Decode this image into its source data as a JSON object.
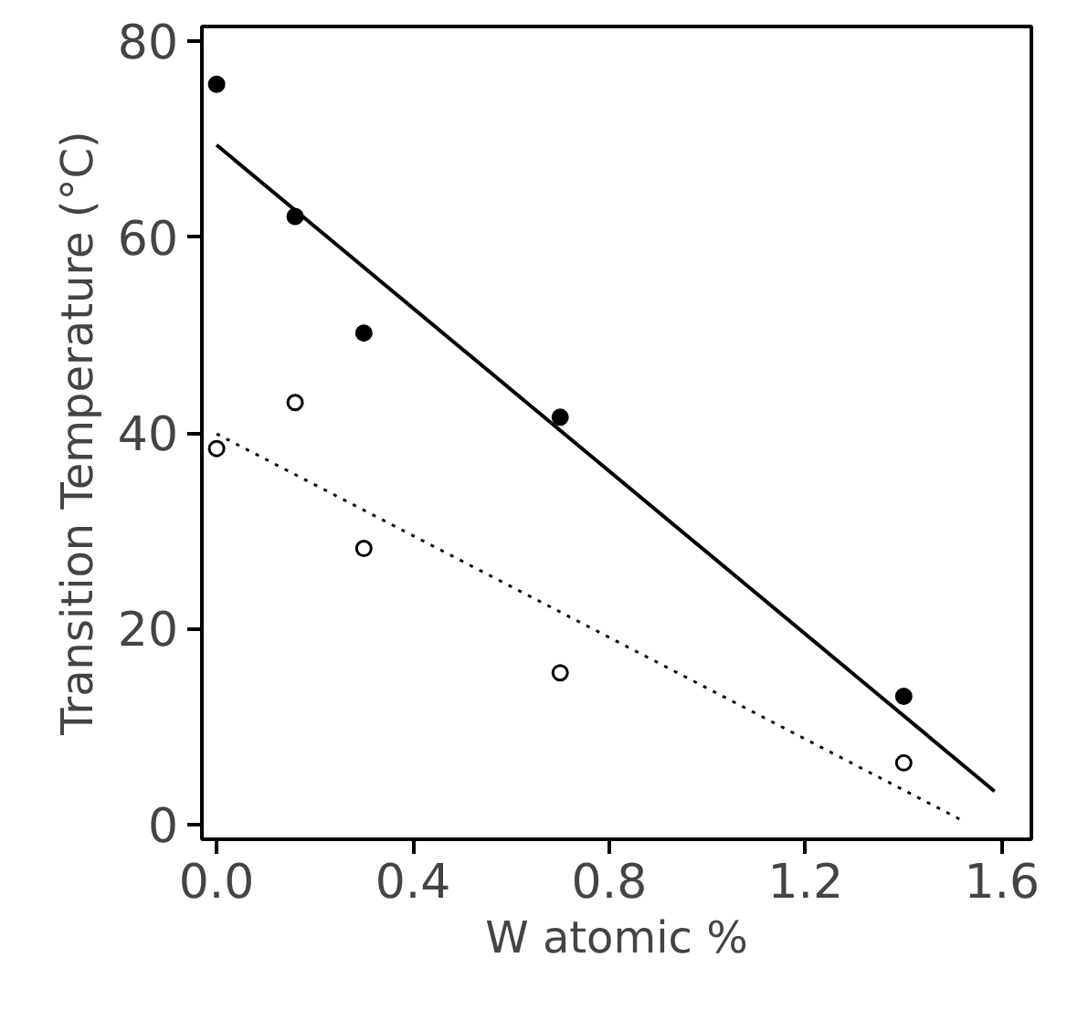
{
  "chart_data": {
    "type": "scatter",
    "xlabel": "W atomic %",
    "ylabel": "Transition Temperature (°C)",
    "xlim": [
      -0.03,
      1.66
    ],
    "ylim": [
      -1.5,
      81.5
    ],
    "xticks": [
      {
        "value": 0,
        "label": "0.0"
      },
      {
        "value": 0.4,
        "label": "0.4"
      },
      {
        "value": 0.8,
        "label": "0.8"
      },
      {
        "value": 1.2,
        "label": "1.2"
      },
      {
        "value": 1.6,
        "label": "1.6"
      }
    ],
    "yticks": [
      0,
      20,
      40,
      60,
      80
    ],
    "grid": false,
    "series": [
      {
        "color": "#000000",
        "marker": "circle",
        "x": [
          0,
          0.16,
          0.3,
          0.7,
          1.4
        ],
        "values": [
          75.6,
          62.1,
          50.2,
          41.6,
          13.1
        ]
      },
      {
        "color": "#000000",
        "marker": "circle",
        "x": [
          0,
          0.16,
          0.3,
          0.7,
          1.4
        ],
        "values": [
          38.4,
          43.1,
          28.2,
          15.5,
          6.3
        ]
      },
      {
        "type": "line",
        "color": "#000000",
        "line_style": "solid",
        "x": [
          0,
          1.585
        ],
        "values": [
          69.4,
          3.4
        ]
      },
      {
        "type": "line",
        "color": "#000000",
        "line_style": "dotted",
        "x": [
          0,
          1.52
        ],
        "values": [
          39.9,
          0.4
        ]
      }
    ]
  }
}
